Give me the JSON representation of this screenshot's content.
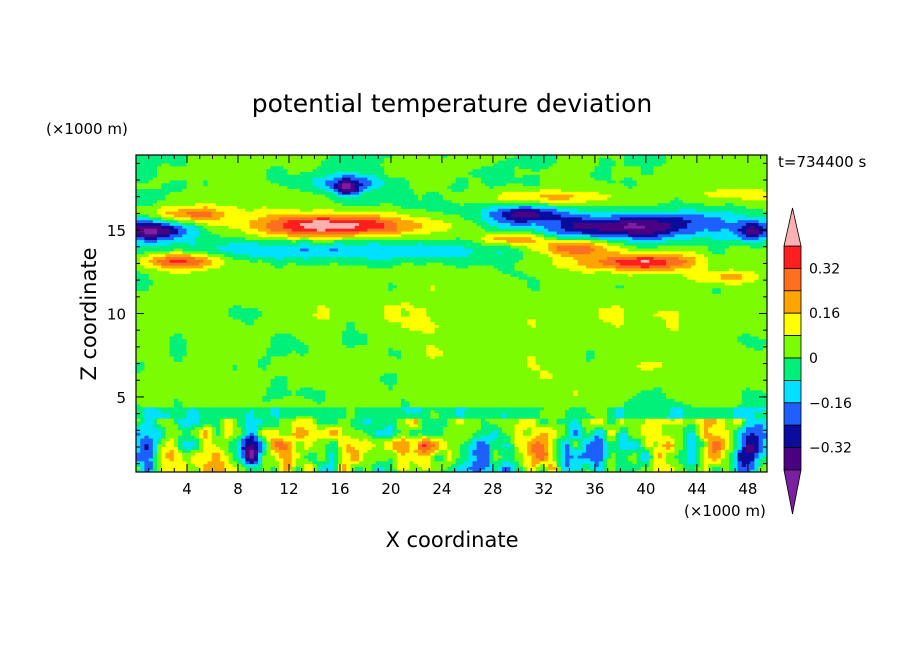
{
  "chart_data": {
    "type": "heatmap",
    "title": "potential temperature deviation",
    "xlabel": "X coordinate",
    "ylabel": "Z coordinate",
    "x_unit": "(×1000 m)",
    "y_unit": "(×1000 m)",
    "time_label": "t=734400 s",
    "xlim": [
      0,
      49.5
    ],
    "ylim": [
      0.5,
      19.5
    ],
    "x_ticks": [
      4,
      8,
      12,
      16,
      20,
      24,
      28,
      32,
      36,
      40,
      44,
      48
    ],
    "y_ticks": [
      5,
      10,
      15
    ],
    "colorbar": {
      "levels": [
        -0.4,
        -0.32,
        -0.24,
        -0.16,
        -0.08,
        0,
        0.08,
        0.16,
        0.24,
        0.32,
        0.4
      ],
      "tick_labels": [
        "0.32",
        "0.16",
        "0",
        "−0.16",
        "−0.32"
      ],
      "tick_values": [
        0.32,
        0.16,
        0,
        -0.16,
        -0.32
      ],
      "colors": [
        "#7b1fa2",
        "#4b0082",
        "#0b0b9c",
        "#1f5fff",
        "#00e0ff",
        "#00f07a",
        "#7cfc00",
        "#ffff00",
        "#ffa500",
        "#ff6f20",
        "#ff1f1f",
        "#ffb0b0"
      ]
    },
    "features": [
      {
        "label": "warm upper band",
        "x": 15,
        "z": 15.3,
        "value": 0.42
      },
      {
        "label": "warm upper band",
        "x": 40,
        "z": 13.2,
        "value": 0.38
      },
      {
        "label": "cold upper band",
        "x": 38,
        "z": 15.2,
        "value": -0.38
      },
      {
        "label": "cold upper band",
        "x": 2,
        "z": 15,
        "value": -0.36
      },
      {
        "label": "cold band",
        "x": 16,
        "z": 13.5,
        "value": -0.15
      },
      {
        "label": "warm cell",
        "x": 3,
        "z": 1.8,
        "value": 0.2
      },
      {
        "label": "warm cell",
        "x": 13,
        "z": 1.8,
        "value": 0.2
      },
      {
        "label": "warm cell",
        "x": 23,
        "z": 1.8,
        "value": 0.2
      },
      {
        "label": "warm cell",
        "x": 32,
        "z": 1.8,
        "value": 0.2
      },
      {
        "label": "warm cell",
        "x": 45,
        "z": 1.8,
        "value": 0.2
      },
      {
        "label": "cold cell",
        "x": 1,
        "z": 1.8,
        "value": -0.3
      },
      {
        "label": "cold cell",
        "x": 9,
        "z": 1.8,
        "value": -0.3
      },
      {
        "label": "cold cell",
        "x": 27,
        "z": 1.8,
        "value": -0.3
      },
      {
        "label": "cold cell",
        "x": 36,
        "z": 1.8,
        "value": -0.3
      },
      {
        "label": "cold cell",
        "x": 48,
        "z": 1.8,
        "value": -0.3
      }
    ]
  }
}
